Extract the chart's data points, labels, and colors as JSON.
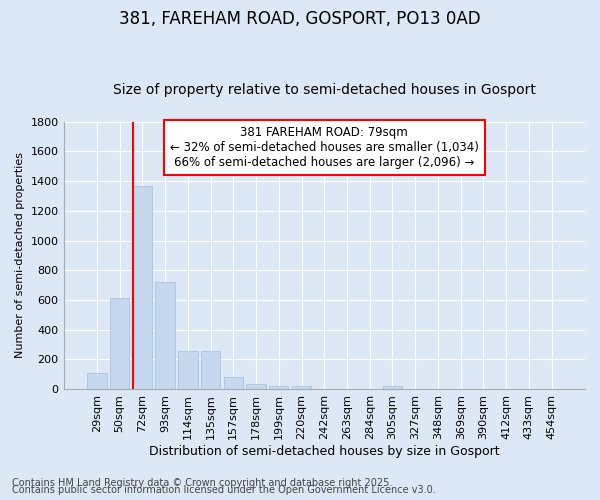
{
  "title1": "381, FAREHAM ROAD, GOSPORT, PO13 0AD",
  "title2": "Size of property relative to semi-detached houses in Gosport",
  "xlabel": "Distribution of semi-detached houses by size in Gosport",
  "ylabel": "Number of semi-detached properties",
  "categories": [
    "29sqm",
    "50sqm",
    "72sqm",
    "93sqm",
    "114sqm",
    "135sqm",
    "157sqm",
    "178sqm",
    "199sqm",
    "220sqm",
    "242sqm",
    "263sqm",
    "284sqm",
    "305sqm",
    "327sqm",
    "348sqm",
    "369sqm",
    "390sqm",
    "412sqm",
    "433sqm",
    "454sqm"
  ],
  "values": [
    110,
    615,
    1365,
    720,
    255,
    255,
    80,
    35,
    20,
    20,
    0,
    0,
    0,
    20,
    0,
    0,
    0,
    0,
    0,
    0,
    0
  ],
  "bar_color": "#c5d8ed",
  "bar_edge_color": "#adc4de",
  "annotation_text_line1": "381 FAREHAM ROAD: 79sqm",
  "annotation_text_line2": "← 32% of semi-detached houses are smaller (1,034)",
  "annotation_text_line3": "66% of semi-detached houses are larger (2,096) →",
  "redline_x": 1.575,
  "ylim": [
    0,
    1800
  ],
  "yticks": [
    0,
    200,
    400,
    600,
    800,
    1000,
    1200,
    1400,
    1600,
    1800
  ],
  "background_color": "#dce8f5",
  "grid_color": "#ffffff",
  "footer_line1": "Contains HM Land Registry data © Crown copyright and database right 2025.",
  "footer_line2": "Contains public sector information licensed under the Open Government Licence v3.0.",
  "title1_fontsize": 12,
  "title2_fontsize": 10,
  "tick_fontsize": 8,
  "ylabel_fontsize": 8,
  "xlabel_fontsize": 9,
  "footer_fontsize": 7,
  "annotation_fontsize": 8.5
}
